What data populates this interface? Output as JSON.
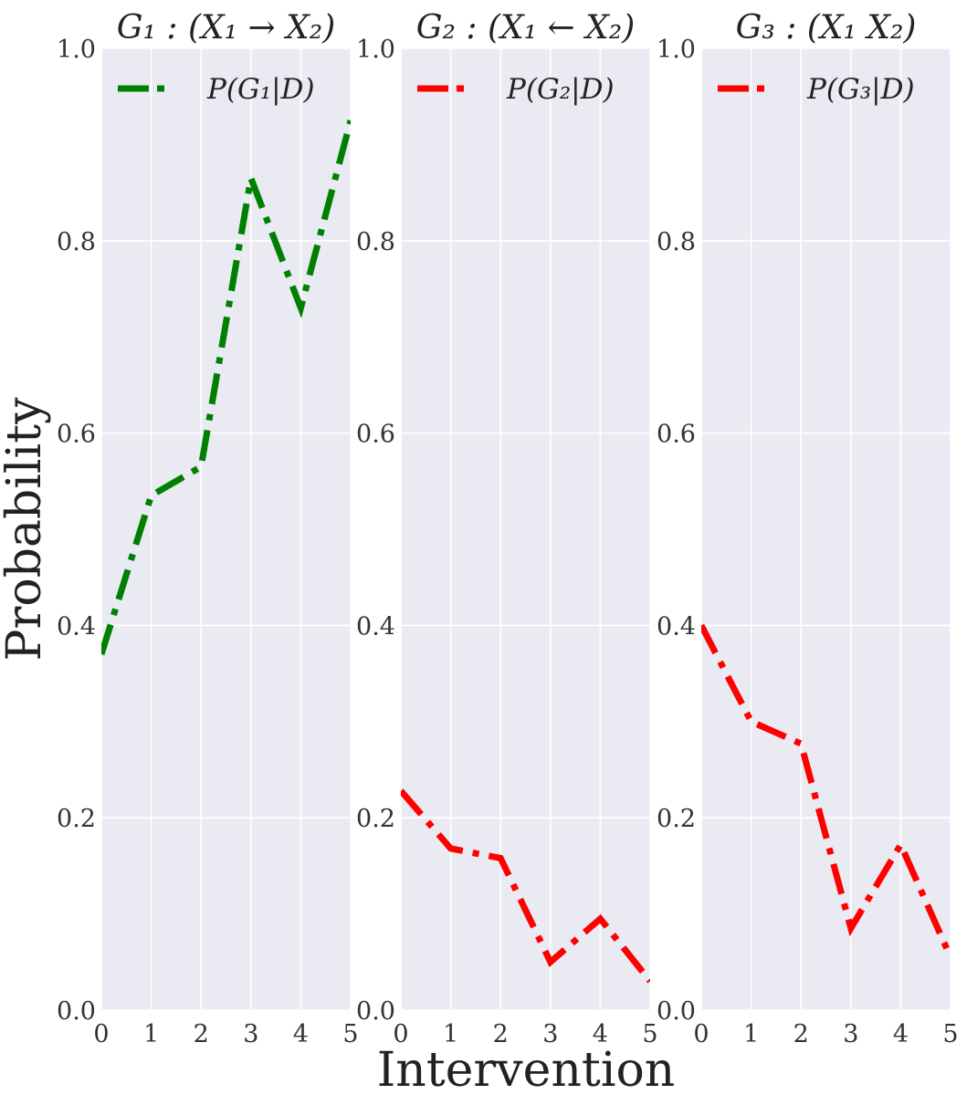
{
  "figure": {
    "xlabel": "Intervention",
    "ylabel": "Probability",
    "background": "#eaeaf2",
    "grid_color": "#ffffff"
  },
  "chart_data": [
    {
      "type": "line",
      "title": "G₁ : (X₁ → X₂)",
      "x": [
        0,
        1,
        2,
        3,
        4,
        5
      ],
      "xticks": [
        "0",
        "1",
        "2",
        "3",
        "4",
        "5"
      ],
      "yticks": [
        "0.0",
        "0.2",
        "0.4",
        "0.6",
        "0.8",
        "1.0"
      ],
      "xlim": [
        0,
        5
      ],
      "ylim": [
        0,
        1
      ],
      "grid": true,
      "legend_position": "top-left",
      "series": [
        {
          "name": "P(G₁|D)",
          "color": "#008000",
          "style": "dash-dot",
          "values": [
            0.37,
            0.535,
            0.565,
            0.865,
            0.73,
            0.925
          ]
        }
      ]
    },
    {
      "type": "line",
      "title": "G₂ : (X₁ ← X₂)",
      "x": [
        0,
        1,
        2,
        3,
        4,
        5
      ],
      "xticks": [
        "0",
        "1",
        "2",
        "3",
        "4",
        "5"
      ],
      "yticks": [
        "0.0",
        "0.2",
        "0.4",
        "0.6",
        "0.8",
        "1.0"
      ],
      "xlim": [
        0,
        5
      ],
      "ylim": [
        0,
        1
      ],
      "grid": true,
      "legend_position": "top-left",
      "series": [
        {
          "name": "P(G₂|D)",
          "color": "#ff0000",
          "style": "dash-dot",
          "values": [
            0.228,
            0.168,
            0.158,
            0.05,
            0.095,
            0.03
          ]
        }
      ]
    },
    {
      "type": "line",
      "title": "G₃ : (X₁ X₂)",
      "x": [
        0,
        1,
        2,
        3,
        4,
        5
      ],
      "xticks": [
        "0",
        "1",
        "2",
        "3",
        "4",
        "5"
      ],
      "yticks": [
        "0.0",
        "0.2",
        "0.4",
        "0.6",
        "0.8",
        "1.0"
      ],
      "xlim": [
        0,
        5
      ],
      "ylim": [
        0,
        1
      ],
      "grid": true,
      "legend_position": "top-left",
      "series": [
        {
          "name": "P(G₃|D)",
          "color": "#ff0000",
          "style": "dash-dot",
          "values": [
            0.4,
            0.3,
            0.277,
            0.085,
            0.172,
            0.055
          ]
        }
      ]
    }
  ]
}
